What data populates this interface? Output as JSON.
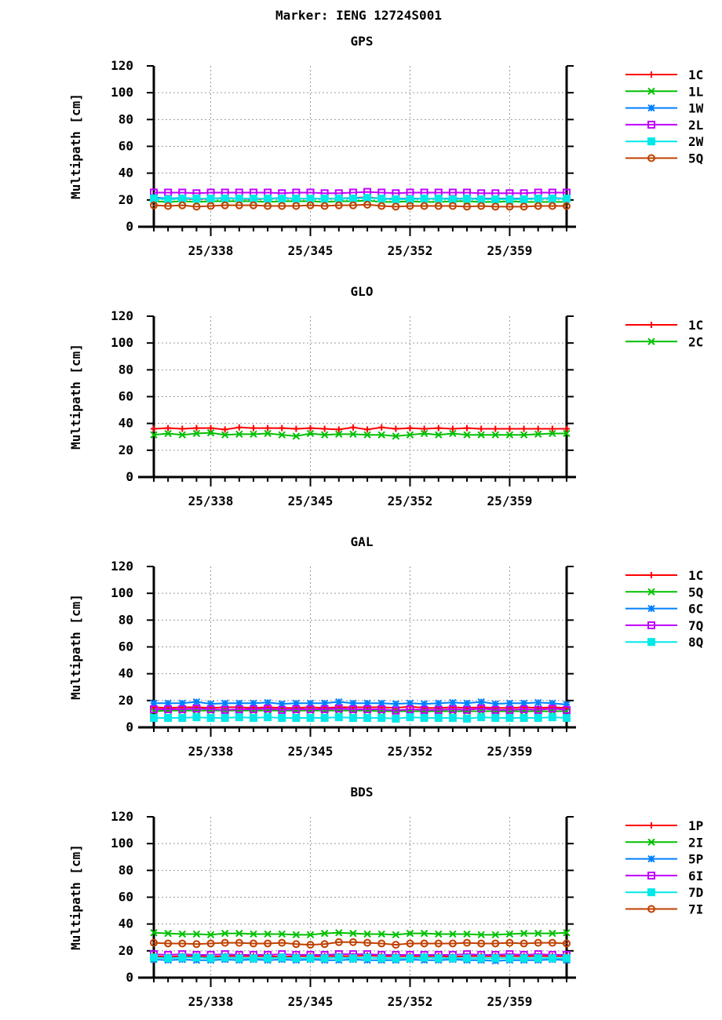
{
  "title": "Marker: IENG 12724S001",
  "chart_data": [
    {
      "type": "line",
      "title": "GPS",
      "ylabel": "Multipath [cm]",
      "ylim": [
        0,
        120
      ],
      "yticks": [
        0,
        20,
        40,
        60,
        80,
        100,
        120
      ],
      "xlim": [
        334,
        363
      ],
      "xticks": [
        338,
        345,
        352,
        359
      ],
      "xtick_labels": [
        "25/338",
        "25/345",
        "25/352",
        "25/359"
      ],
      "grid": true,
      "legend": "right",
      "x_start": 334,
      "series": [
        {
          "name": "1C",
          "color": "#ff0000",
          "marker": "plus",
          "values": [
            21,
            21,
            21,
            20.5,
            21,
            21,
            21,
            20.5,
            21,
            21,
            21,
            21,
            21,
            21,
            21.5,
            22,
            21,
            20.5,
            21,
            21,
            21,
            21,
            21,
            21,
            21,
            21,
            21,
            21,
            21,
            21
          ]
        },
        {
          "name": "1L",
          "color": "#00c000",
          "marker": "x",
          "values": [
            19,
            18.5,
            19,
            18.5,
            19,
            19,
            19,
            19,
            18.5,
            19,
            19,
            19,
            18.5,
            19,
            19,
            19.5,
            18.5,
            18.5,
            19,
            18.5,
            18.5,
            19,
            19,
            18.5,
            18.5,
            19,
            18.5,
            18.5,
            18.5,
            18.5
          ]
        },
        {
          "name": "1W",
          "color": "#0080ff",
          "marker": "star",
          "values": [
            22,
            21,
            21.5,
            21,
            21,
            21.5,
            21,
            21,
            21,
            21.5,
            21,
            21,
            21,
            21,
            21.5,
            21.5,
            21,
            21,
            21,
            21,
            21,
            21,
            21,
            21,
            21,
            21,
            21,
            21,
            21.5,
            21
          ]
        },
        {
          "name": "2L",
          "color": "#c000ff",
          "marker": "square",
          "values": [
            25.5,
            25.5,
            25.5,
            25,
            25.5,
            25.5,
            25.5,
            25.5,
            25.5,
            25,
            25.5,
            25.5,
            25,
            25,
            25.5,
            26,
            25.5,
            25,
            25.5,
            25.5,
            25.5,
            25.5,
            25.5,
            25,
            25,
            25,
            25,
            25.5,
            25.5,
            25.5
          ]
        },
        {
          "name": "2W",
          "color": "#00e8e8",
          "marker": "filled-square",
          "values": [
            21,
            20.5,
            21,
            21,
            21,
            21,
            21,
            21,
            21,
            21,
            21,
            21,
            21,
            21,
            21,
            21.5,
            21,
            20.5,
            20.5,
            21,
            21,
            20.5,
            21,
            20.5,
            20.5,
            20.5,
            20.5,
            21,
            21,
            21
          ]
        },
        {
          "name": "5Q",
          "color": "#c04000",
          "marker": "circle",
          "values": [
            16,
            15.5,
            16,
            15,
            15.5,
            16,
            16,
            16,
            15.5,
            15.5,
            15.5,
            16,
            15.5,
            16,
            16,
            16.5,
            15.5,
            15,
            15.5,
            15.5,
            15.5,
            15.5,
            15,
            15.5,
            15,
            15,
            15,
            15.5,
            15.5,
            15.5
          ]
        }
      ]
    },
    {
      "type": "line",
      "title": "GLO",
      "ylabel": "Multipath [cm]",
      "ylim": [
        0,
        120
      ],
      "yticks": [
        0,
        20,
        40,
        60,
        80,
        100,
        120
      ],
      "xlim": [
        334,
        363
      ],
      "xticks": [
        338,
        345,
        352,
        359
      ],
      "xtick_labels": [
        "25/338",
        "25/345",
        "25/352",
        "25/359"
      ],
      "grid": true,
      "legend": "right",
      "x_start": 334,
      "series": [
        {
          "name": "1C",
          "color": "#ff0000",
          "marker": "plus",
          "values": [
            36,
            36.5,
            36,
            36.5,
            36.5,
            35.5,
            37,
            36.5,
            36.5,
            36.5,
            36,
            36.5,
            36,
            35.5,
            37,
            35.5,
            37,
            36,
            36.5,
            36,
            36.5,
            36,
            36.5,
            36,
            36,
            36,
            36,
            36,
            36,
            36
          ]
        },
        {
          "name": "2C",
          "color": "#00c000",
          "marker": "x",
          "values": [
            31.5,
            32.5,
            31.5,
            32.5,
            33,
            31.5,
            32,
            32,
            32.5,
            31.5,
            30.5,
            32.5,
            31.5,
            32,
            32,
            31.5,
            31.5,
            30.5,
            31.5,
            32.5,
            31.5,
            32.5,
            31.5,
            31.5,
            31.5,
            31.5,
            31.5,
            32,
            32.5,
            32.5
          ]
        }
      ]
    },
    {
      "type": "line",
      "title": "GAL",
      "ylabel": "Multipath [cm]",
      "ylim": [
        0,
        120
      ],
      "yticks": [
        0,
        20,
        40,
        60,
        80,
        100,
        120
      ],
      "xlim": [
        334,
        363
      ],
      "xticks": [
        338,
        345,
        352,
        359
      ],
      "xtick_labels": [
        "25/338",
        "25/345",
        "25/352",
        "25/359"
      ],
      "grid": true,
      "legend": "right",
      "x_start": 334,
      "series": [
        {
          "name": "1C",
          "color": "#ff0000",
          "marker": "plus",
          "values": [
            15,
            14.5,
            15,
            15,
            14.5,
            15,
            15,
            14.5,
            15,
            14.5,
            14.5,
            15,
            14.5,
            15,
            15,
            15,
            15,
            14.5,
            15.5,
            14.5,
            14.5,
            15,
            14.5,
            15,
            14.5,
            14.5,
            15,
            14.5,
            15,
            14.5
          ]
        },
        {
          "name": "5Q",
          "color": "#00c000",
          "marker": "x",
          "values": [
            12,
            12.5,
            12.5,
            12.5,
            12.5,
            12.5,
            12.5,
            12.5,
            12.5,
            12.5,
            12.5,
            12.5,
            12.5,
            12.5,
            12.5,
            12.5,
            12,
            12,
            12,
            12,
            12,
            12,
            12,
            12,
            12,
            12,
            12,
            12,
            12,
            12
          ]
        },
        {
          "name": "6C",
          "color": "#0080ff",
          "marker": "star",
          "values": [
            18,
            18,
            18,
            19,
            17.5,
            18,
            18,
            18,
            18.5,
            17.5,
            18,
            18,
            18,
            19,
            18,
            18,
            18,
            17.5,
            18,
            17.5,
            18,
            18.5,
            18,
            19,
            17.5,
            18,
            18,
            18.5,
            18,
            17
          ]
        },
        {
          "name": "7Q",
          "color": "#c000ff",
          "marker": "square",
          "values": [
            13.5,
            13.5,
            13.5,
            14,
            13.5,
            13,
            13.5,
            13.5,
            14,
            13,
            13.5,
            13.5,
            13.5,
            14,
            13.5,
            13.5,
            13.5,
            12.5,
            13.5,
            13,
            13,
            13.5,
            13,
            14,
            13,
            13,
            13.5,
            13,
            14,
            13
          ]
        },
        {
          "name": "8Q",
          "color": "#00e8e8",
          "marker": "filled-square",
          "values": [
            7,
            7,
            7,
            7.5,
            7,
            7,
            7.5,
            7,
            7.5,
            7,
            7,
            7,
            7,
            7.5,
            7,
            7,
            7,
            6.5,
            7.5,
            7,
            7,
            7,
            6.5,
            7.5,
            7,
            7,
            7,
            7,
            7.5,
            7
          ]
        }
      ]
    },
    {
      "type": "line",
      "title": "BDS",
      "ylabel": "Multipath [cm]",
      "ylim": [
        0,
        120
      ],
      "yticks": [
        0,
        20,
        40,
        60,
        80,
        100,
        120
      ],
      "xlim": [
        334,
        363
      ],
      "xticks": [
        338,
        345,
        352,
        359
      ],
      "xtick_labels": [
        "25/338",
        "25/345",
        "25/352",
        "25/359"
      ],
      "grid": true,
      "legend": "right",
      "x_start": 334,
      "series": [
        {
          "name": "1P",
          "color": "#ff0000",
          "marker": "plus",
          "values": [
            16,
            15.5,
            16,
            16,
            15.5,
            16,
            16,
            16,
            16,
            15.5,
            16,
            16,
            16,
            16,
            16,
            16.5,
            16,
            16,
            16,
            16,
            16,
            15.5,
            16,
            16,
            16,
            16,
            16,
            16,
            16,
            16
          ]
        },
        {
          "name": "2I",
          "color": "#00c000",
          "marker": "x",
          "values": [
            33.5,
            33,
            32.5,
            32.5,
            32,
            33,
            33,
            32.5,
            32.5,
            32.5,
            32,
            32,
            33,
            33.5,
            33,
            32.5,
            32.5,
            32,
            33,
            33,
            32.5,
            32.5,
            32.5,
            32,
            32,
            32.5,
            33,
            33,
            33,
            33.5
          ]
        },
        {
          "name": "5P",
          "color": "#0080ff",
          "marker": "star",
          "values": [
            13.5,
            13,
            13.5,
            13,
            13,
            13.5,
            13,
            13.5,
            13,
            13.5,
            13,
            13.5,
            13,
            13,
            13.5,
            13,
            13,
            13,
            13.5,
            13,
            13,
            13.5,
            13,
            13,
            12.5,
            13,
            13,
            13,
            13.5,
            13
          ]
        },
        {
          "name": "6I",
          "color": "#c000ff",
          "marker": "square",
          "values": [
            17.5,
            17,
            17.5,
            17,
            17,
            17.5,
            17,
            17,
            17,
            17.5,
            17,
            17,
            17,
            17.5,
            17.5,
            17.5,
            17,
            17,
            17,
            17,
            17,
            17,
            17.5,
            17,
            17,
            17.5,
            17,
            17.5,
            17,
            17
          ]
        },
        {
          "name": "7D",
          "color": "#00e8e8",
          "marker": "filled-square",
          "values": [
            15,
            14.5,
            15,
            15,
            14.5,
            15,
            14.5,
            14.5,
            14.5,
            15,
            14.5,
            14.5,
            14.5,
            15,
            14.5,
            15,
            14.5,
            14.5,
            14.5,
            15,
            14.5,
            14.5,
            14.5,
            14.5,
            14.5,
            14.5,
            14.5,
            14.5,
            14.5,
            14.5
          ]
        },
        {
          "name": "7I",
          "color": "#c04000",
          "marker": "circle",
          "values": [
            26,
            25.5,
            25.5,
            25,
            25.5,
            26,
            26,
            25.5,
            25.5,
            26,
            25,
            24.5,
            25,
            26.5,
            26.5,
            26,
            25.5,
            24.5,
            25.5,
            25.5,
            25.5,
            25.5,
            26,
            25.5,
            25.5,
            26,
            25.5,
            26,
            26,
            25.5
          ]
        }
      ]
    }
  ]
}
